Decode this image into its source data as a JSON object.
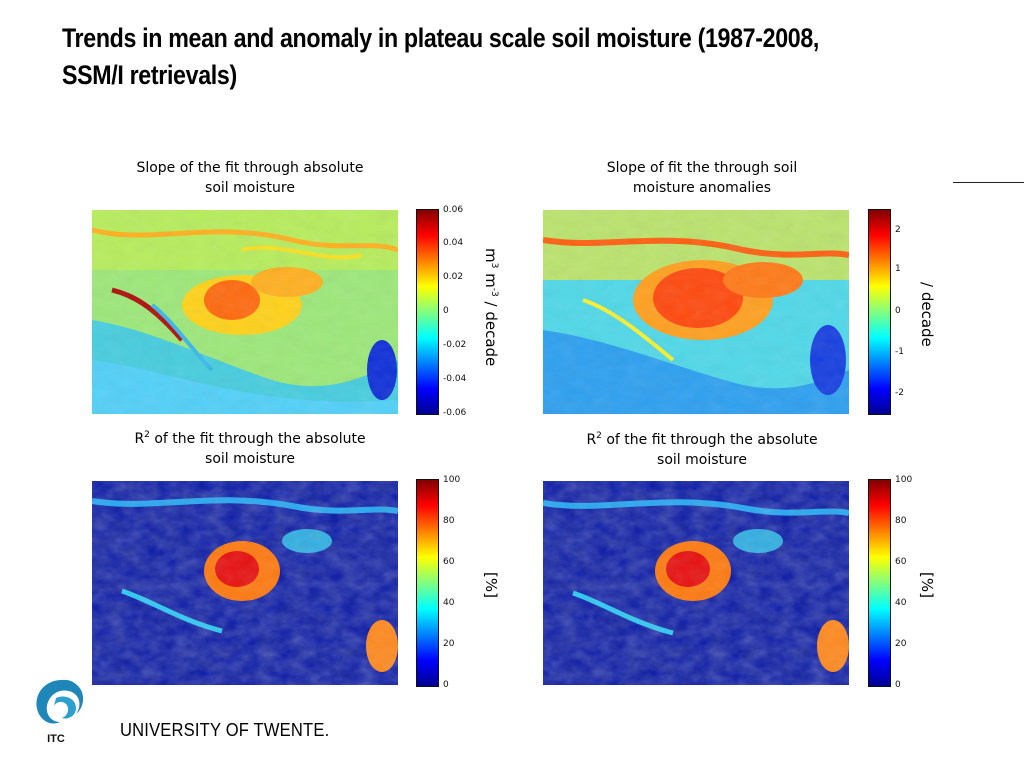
{
  "slide": {
    "title": "Trends in mean and anomaly in plateau scale soil moisture (1987-2008, SSM/I retrievals)",
    "footer": "UNIVERSITY OF TWENTE.",
    "logo_text": "ITC"
  },
  "panels": [
    {
      "title_line1": "Slope of the fit through absolute",
      "title_line2": "soil moisture",
      "colorbar_ticks": [
        "0.06",
        "0.04",
        "0.02",
        "0",
        "-0.02",
        "-0.04",
        "-0.06"
      ],
      "unit_label_prefix": "m",
      "unit_label_sup1": "3",
      "unit_label_mid": " m",
      "unit_label_sup2": "-3",
      "unit_label_suffix": " / decade"
    },
    {
      "title_line1": "Slope of fit the through soil",
      "title_line2": "moisture anomalies",
      "colorbar_ticks": [
        "2",
        "1",
        "0",
        "-1",
        "-2"
      ],
      "unit_label": "/ decade"
    },
    {
      "title_sup": "2",
      "title_line1_prefix": "R",
      "title_line1": " of the fit through the absolute",
      "title_line2": "soil moisture",
      "colorbar_ticks": [
        "100",
        "80",
        "60",
        "40",
        "20",
        "0"
      ],
      "unit_label": "[%]"
    },
    {
      "title_sup": "2",
      "title_line1_prefix": "R",
      "title_line1": " of the fit through the absolute",
      "title_line2": "soil moisture",
      "colorbar_ticks": [
        "100",
        "80",
        "60",
        "40",
        "20",
        "0"
      ],
      "unit_label": "[%]"
    }
  ],
  "colormap": "jet"
}
